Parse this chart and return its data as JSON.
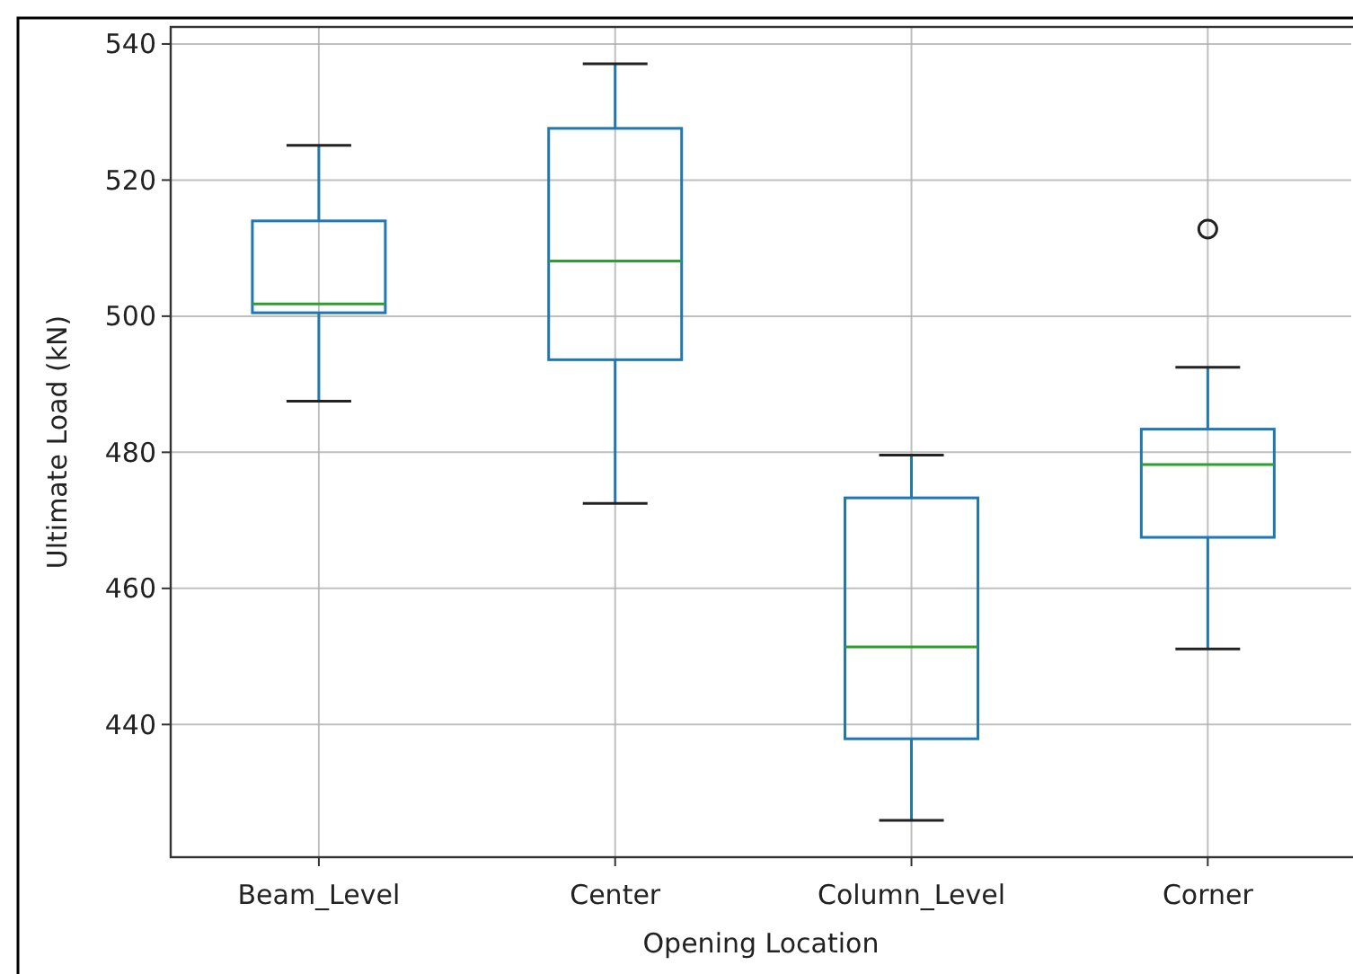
{
  "chart_data": {
    "type": "box",
    "xlabel": "Opening Location",
    "ylabel": "Ultimate Load (kN)",
    "categories": [
      "Beam_Level",
      "Center",
      "Column_Level",
      "Corner"
    ],
    "series": [
      {
        "color": "#1f77b4",
        "boxes": [
          {
            "low": 487.5,
            "q1": 500.5,
            "median": 501.8,
            "q3": 514.0,
            "high": 525.1
          },
          {
            "low": 472.5,
            "q1": 493.6,
            "median": 508.1,
            "q3": 527.6,
            "high": 537.1
          },
          {
            "low": 425.9,
            "q1": 437.9,
            "median": 451.4,
            "q3": 473.3,
            "high": 479.6
          },
          {
            "low": 451.1,
            "q1": 467.5,
            "median": 478.2,
            "q3": 483.4,
            "high": 492.5,
            "outliers": [
              512.8
            ]
          }
        ]
      }
    ],
    "ylim": [
      420.5,
      542.5
    ],
    "yticks": [
      440,
      460,
      480,
      500,
      520,
      540
    ],
    "grid": true
  }
}
